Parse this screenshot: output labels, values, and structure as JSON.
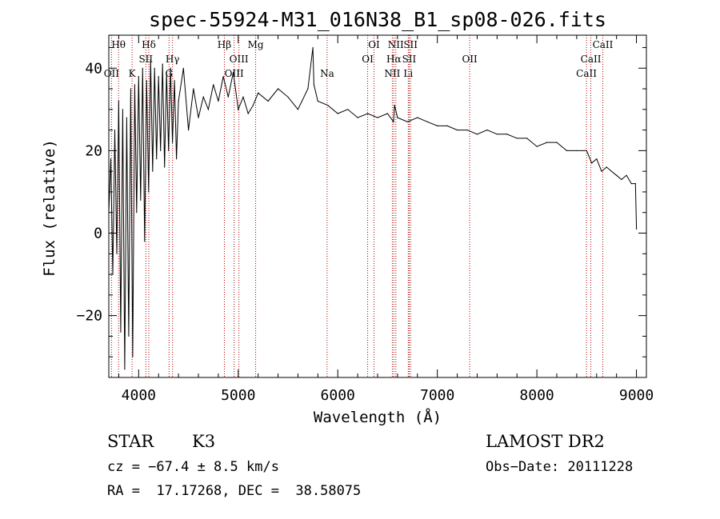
{
  "chart_data": {
    "type": "line",
    "title": "spec-55924-M31_016N38_B1_sp08-026.fits",
    "xlabel": "Wavelength (Å)",
    "ylabel": "Flux (relative)",
    "xlim": [
      3700,
      9100
    ],
    "ylim": [
      -35,
      48
    ],
    "xticks": [
      4000,
      5000,
      6000,
      7000,
      8000,
      9000
    ],
    "xtick_labels": [
      "4000",
      "5000",
      "6000",
      "7000",
      "8000",
      "9000"
    ],
    "yticks": [
      -20,
      0,
      20,
      40
    ],
    "ytick_labels": [
      "−20",
      "0",
      "20",
      "40"
    ],
    "grid": false,
    "series": [
      {
        "name": "flux",
        "x": [
          3700,
          3720,
          3740,
          3760,
          3780,
          3800,
          3820,
          3840,
          3860,
          3880,
          3900,
          3920,
          3940,
          3960,
          3980,
          4000,
          4020,
          4040,
          4060,
          4080,
          4100,
          4120,
          4140,
          4160,
          4180,
          4200,
          4220,
          4240,
          4260,
          4280,
          4300,
          4320,
          4340,
          4360,
          4380,
          4400,
          4450,
          4500,
          4550,
          4600,
          4650,
          4700,
          4750,
          4800,
          4850,
          4900,
          4950,
          5000,
          5050,
          5100,
          5150,
          5200,
          5300,
          5400,
          5500,
          5600,
          5700,
          5750,
          5760,
          5800,
          5900,
          6000,
          6100,
          6200,
          6300,
          6400,
          6500,
          6560,
          6570,
          6600,
          6700,
          6800,
          6900,
          7000,
          7100,
          7200,
          7300,
          7400,
          7500,
          7600,
          7700,
          7800,
          7900,
          8000,
          8100,
          8200,
          8300,
          8400,
          8500,
          8550,
          8600,
          8650,
          8700,
          8750,
          8800,
          8850,
          8900,
          8950,
          8990,
          9000
        ],
        "values": [
          5,
          18,
          -10,
          25,
          -5,
          32,
          -24,
          30,
          -33,
          28,
          -25,
          35,
          -30,
          36,
          5,
          38,
          8,
          40,
          -2,
          37,
          10,
          42,
          15,
          40,
          18,
          38,
          20,
          41,
          16,
          39,
          20,
          40,
          22,
          37,
          18,
          32,
          40,
          25,
          35,
          28,
          33,
          30,
          36,
          32,
          38,
          33,
          39,
          30,
          33,
          29,
          31,
          34,
          32,
          35,
          33,
          30,
          35,
          45,
          36,
          32,
          31,
          29,
          30,
          28,
          29,
          28,
          29,
          27,
          31,
          28,
          27,
          28,
          27,
          26,
          26,
          25,
          25,
          24,
          25,
          24,
          24,
          23,
          23,
          21,
          22,
          22,
          20,
          20,
          20,
          17,
          18,
          15,
          16,
          15,
          14,
          13,
          14,
          12,
          12,
          1
        ]
      }
    ],
    "lines": [
      {
        "name": "Hθ",
        "x": 3798,
        "row": 0
      },
      {
        "name": "OII",
        "x": 3727,
        "row": 2
      },
      {
        "name": "K",
        "x": 3934,
        "row": 2
      },
      {
        "name": "Hδ",
        "x": 4102,
        "row": 0
      },
      {
        "name": "SII",
        "x": 4072,
        "row": 1
      },
      {
        "name": "Hγ",
        "x": 4340,
        "row": 1
      },
      {
        "name": "G",
        "x": 4305,
        "row": 2
      },
      {
        "name": "Hβ",
        "x": 4861,
        "row": 0
      },
      {
        "name": "OIII",
        "x": 5007,
        "row": 1
      },
      {
        "name": "OIII",
        "x": 4959,
        "row": 2
      },
      {
        "name": "Mg",
        "x": 5175,
        "row": 0
      },
      {
        "name": "Na",
        "x": 5893,
        "row": 2
      },
      {
        "name": "OI",
        "x": 6364,
        "row": 0
      },
      {
        "name": "OI",
        "x": 6300,
        "row": 1
      },
      {
        "name": "NII",
        "x": 6583,
        "row": 0
      },
      {
        "name": "Hα",
        "x": 6563,
        "row": 1
      },
      {
        "name": "NII",
        "x": 6548,
        "row": 2
      },
      {
        "name": "SII",
        "x": 6731,
        "row": 0
      },
      {
        "name": "SII",
        "x": 6717,
        "row": 1
      },
      {
        "name": "Li",
        "x": 6708,
        "row": 2
      },
      {
        "name": "OII",
        "x": 7325,
        "row": 1
      },
      {
        "name": "CaII",
        "x": 8662,
        "row": 0
      },
      {
        "name": "CaII",
        "x": 8542,
        "row": 1
      },
      {
        "name": "CaII",
        "x": 8498,
        "row": 2
      }
    ]
  },
  "info": {
    "class": "STAR",
    "subclass": "K3",
    "survey": "LAMOST DR2",
    "cz": "cz = −67.4 ± 8.5 km/s",
    "obs_date": "Obs−Date: 20111228",
    "coords": "RA =  17.17268, DEC =  38.58075"
  }
}
